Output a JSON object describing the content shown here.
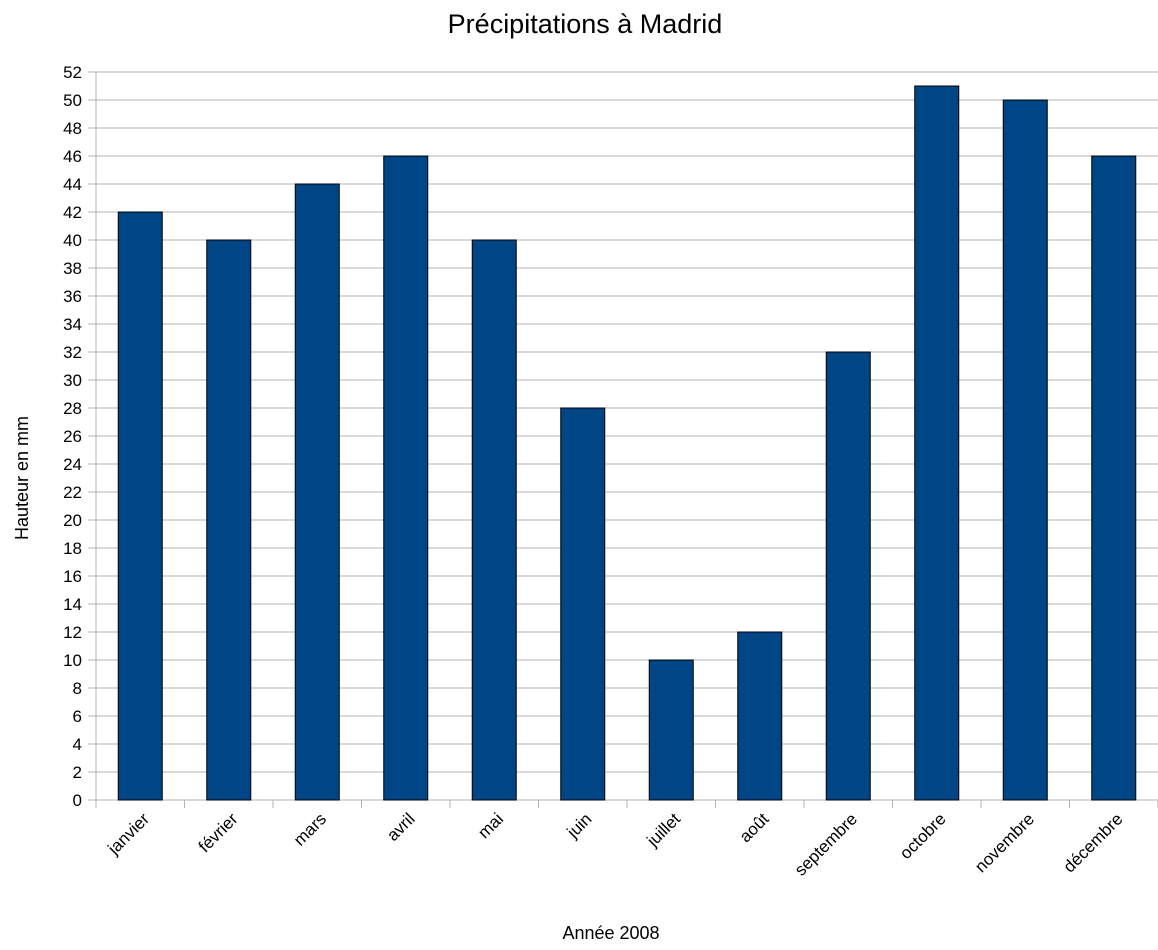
{
  "chart_data": {
    "type": "bar",
    "title": "Précipitations à Madrid",
    "xlabel": "Année 2008",
    "ylabel": "Hauteur en mm",
    "categories": [
      "janvier",
      "février",
      "mars",
      "avril",
      "mai",
      "juin",
      "juillet",
      "août",
      "septembre",
      "octobre",
      "novembre",
      "décembre"
    ],
    "values": [
      42,
      40,
      44,
      46,
      40,
      28,
      10,
      12,
      32,
      51,
      50,
      46
    ],
    "ylim": [
      0,
      52
    ],
    "yticks": [
      0,
      2,
      4,
      6,
      8,
      10,
      12,
      14,
      16,
      18,
      20,
      22,
      24,
      26,
      28,
      30,
      32,
      34,
      36,
      38,
      40,
      42,
      44,
      46,
      48,
      50,
      52
    ],
    "grid": true,
    "legend": "none",
    "colors": {
      "bar": "#004586",
      "bar_stroke": "#000000",
      "grid": "#b3b3b3",
      "axis": "#b3b3b3",
      "text": "#000000"
    }
  }
}
